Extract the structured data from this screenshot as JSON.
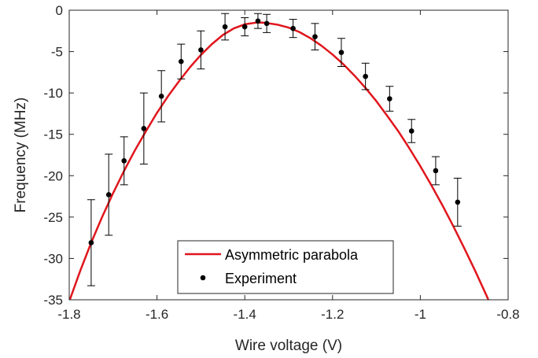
{
  "chart_data": {
    "type": "scatter",
    "title": "",
    "xlabel": "Wire voltage (V)",
    "ylabel": "Frequency (MHz)",
    "xlim": [
      -1.8,
      -0.8
    ],
    "ylim": [
      -35,
      0
    ],
    "xticks": [
      -1.8,
      -1.6,
      -1.4,
      -1.2,
      -1.0,
      -0.8
    ],
    "xtick_labels": [
      "-1.8",
      "-1.6",
      "-1.4",
      "-1.2",
      "-1",
      "-0.8"
    ],
    "yticks": [
      -35,
      -30,
      -25,
      -20,
      -15,
      -10,
      -5,
      0
    ],
    "ytick_labels": [
      "-35",
      "-30",
      "-25",
      "-20",
      "-15",
      "-10",
      "-5",
      "0"
    ],
    "grid": false,
    "legend_position": "bottom-center",
    "series": [
      {
        "name": "Asymmetric parabola",
        "kind": "line",
        "color": "#e0161d",
        "x": [
          -1.8,
          -1.775,
          -1.75,
          -1.725,
          -1.7,
          -1.675,
          -1.65,
          -1.625,
          -1.6,
          -1.575,
          -1.55,
          -1.525,
          -1.5,
          -1.475,
          -1.45,
          -1.425,
          -1.4,
          -1.375,
          -1.36,
          -1.35,
          -1.325,
          -1.3,
          -1.275,
          -1.25,
          -1.225,
          -1.2,
          -1.175,
          -1.15,
          -1.125,
          -1.1,
          -1.075,
          -1.05,
          -1.025,
          -1.0,
          -0.975,
          -0.95,
          -0.925,
          -0.9,
          -0.875,
          -0.85,
          -0.825,
          -0.8
        ],
        "y": [
          -35.2,
          -31.5,
          -28.1,
          -25.0,
          -22.1,
          -19.4,
          -16.9,
          -14.6,
          -12.4,
          -10.4,
          -8.6,
          -6.9,
          -5.4,
          -4.1,
          -3.0,
          -2.2,
          -1.7,
          -1.5,
          -1.5,
          -1.55,
          -1.75,
          -2.1,
          -2.65,
          -3.4,
          -4.3,
          -5.35,
          -6.55,
          -7.9,
          -9.4,
          -11.0,
          -12.8,
          -14.65,
          -16.7,
          -18.85,
          -21.15,
          -23.55,
          -26.1,
          -28.75,
          -31.5,
          -34.4,
          -37.4,
          -40.5
        ]
      },
      {
        "name": "Experiment",
        "kind": "errorbar",
        "color": "#000000",
        "x": [
          -1.75,
          -1.71,
          -1.675,
          -1.63,
          -1.59,
          -1.545,
          -1.5,
          -1.445,
          -1.4,
          -1.37,
          -1.35,
          -1.29,
          -1.24,
          -1.18,
          -1.125,
          -1.07,
          -1.02,
          -0.965,
          -0.915
        ],
        "y": [
          -28.1,
          -22.3,
          -18.2,
          -14.3,
          -10.4,
          -6.2,
          -4.8,
          -2.0,
          -2.0,
          -1.3,
          -1.6,
          -2.2,
          -3.2,
          -5.1,
          -8.0,
          -10.7,
          -14.6,
          -19.4,
          -23.2
        ],
        "err": [
          5.2,
          4.9,
          2.9,
          4.3,
          3.1,
          2.1,
          2.3,
          1.6,
          1.1,
          0.9,
          1.1,
          1.1,
          1.6,
          1.7,
          1.6,
          1.5,
          1.4,
          1.7,
          2.9
        ]
      }
    ]
  }
}
